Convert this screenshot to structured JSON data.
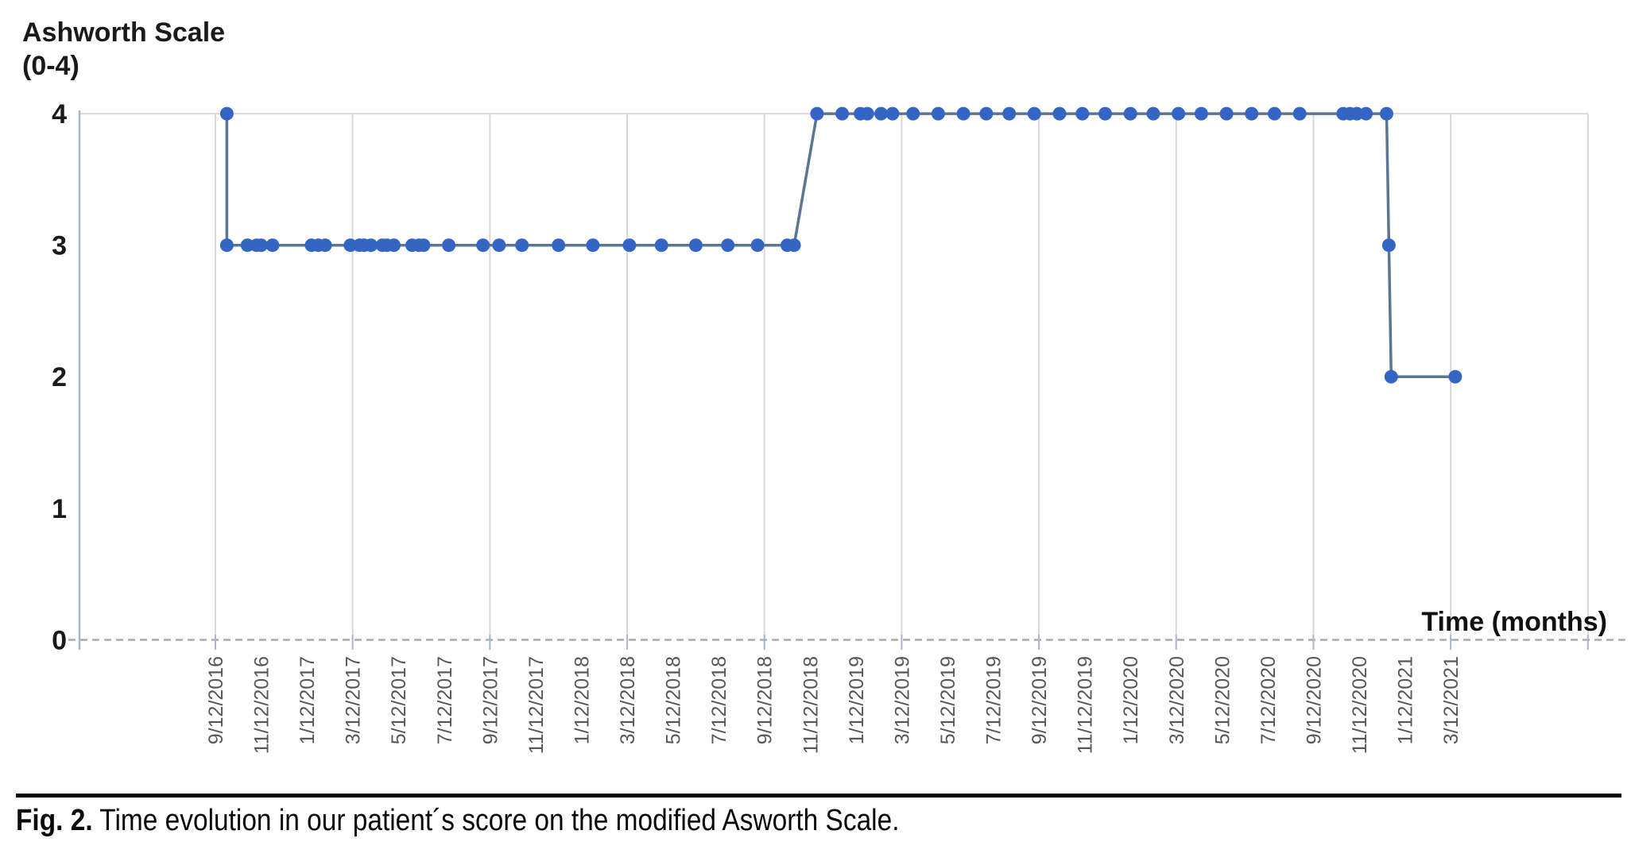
{
  "figure": {
    "y_axis_title_line1": "Ashworth Scale",
    "y_axis_title_line2": "(0-4)",
    "x_axis_title": "Time (months)",
    "caption_prefix": "Fig. 2.",
    "caption_text": " Time evolution in our patient´s score on the modified Asworth Scale."
  },
  "chart_data": {
    "type": "line",
    "title": "Ashworth Scale (0-4)",
    "xlabel": "Time (months)",
    "ylabel": "Ashworth Scale (0-4)",
    "ylim": [
      0,
      4
    ],
    "y_ticks": [
      4,
      3,
      2,
      1,
      0
    ],
    "x_range_months": [
      0,
      60
    ],
    "x_tick_interval_months": 2,
    "x_epoch_label": "9/12/2016",
    "x_tick_labels": [
      "9/12/2016",
      "11/12/2016",
      "1/12/2017",
      "3/12/2017",
      "5/12/2017",
      "7/12/2017",
      "9/12/2017",
      "11/12/2017",
      "1/12/2018",
      "3/12/2018",
      "5/12/2018",
      "7/12/2018",
      "9/12/2018",
      "11/12/2018",
      "1/12/2019",
      "3/12/2019",
      "5/12/2019",
      "7/12/2019",
      "9/12/2019",
      "11/12/2019",
      "1/12/2020",
      "3/12/2020",
      "5/12/2020",
      "7/12/2020",
      "9/12/2020",
      "11/12/2020",
      "1/12/2021",
      "3/12/2021"
    ],
    "gridlines": {
      "vertical_every_months": 6,
      "horizontal_at_values": [
        4
      ],
      "baseline_dashed_at": 0
    },
    "legend": "none",
    "points_note": "t = months after 9/12/2016 (estimated from axis); y = modified Ashworth score",
    "points": [
      {
        "t": 0.5,
        "y": 4
      },
      {
        "t": 0.5,
        "y": 3
      },
      {
        "t": 1.4,
        "y": 3
      },
      {
        "t": 1.8,
        "y": 3
      },
      {
        "t": 2.0,
        "y": 3
      },
      {
        "t": 2.5,
        "y": 3
      },
      {
        "t": 4.2,
        "y": 3
      },
      {
        "t": 4.5,
        "y": 3
      },
      {
        "t": 4.8,
        "y": 3
      },
      {
        "t": 5.9,
        "y": 3
      },
      {
        "t": 6.3,
        "y": 3
      },
      {
        "t": 6.5,
        "y": 3
      },
      {
        "t": 6.8,
        "y": 3
      },
      {
        "t": 7.3,
        "y": 3
      },
      {
        "t": 7.5,
        "y": 3
      },
      {
        "t": 7.8,
        "y": 3
      },
      {
        "t": 8.6,
        "y": 3
      },
      {
        "t": 8.9,
        "y": 3
      },
      {
        "t": 9.1,
        "y": 3
      },
      {
        "t": 10.2,
        "y": 3
      },
      {
        "t": 11.7,
        "y": 3
      },
      {
        "t": 12.4,
        "y": 3
      },
      {
        "t": 13.4,
        "y": 3
      },
      {
        "t": 15.0,
        "y": 3
      },
      {
        "t": 16.5,
        "y": 3
      },
      {
        "t": 18.1,
        "y": 3
      },
      {
        "t": 19.5,
        "y": 3
      },
      {
        "t": 21.0,
        "y": 3
      },
      {
        "t": 22.4,
        "y": 3
      },
      {
        "t": 23.7,
        "y": 3
      },
      {
        "t": 25.0,
        "y": 3
      },
      {
        "t": 25.3,
        "y": 3
      },
      {
        "t": 26.3,
        "y": 4
      },
      {
        "t": 27.4,
        "y": 4
      },
      {
        "t": 28.2,
        "y": 4
      },
      {
        "t": 28.5,
        "y": 4
      },
      {
        "t": 29.1,
        "y": 4
      },
      {
        "t": 29.6,
        "y": 4
      },
      {
        "t": 30.5,
        "y": 4
      },
      {
        "t": 31.6,
        "y": 4
      },
      {
        "t": 32.7,
        "y": 4
      },
      {
        "t": 33.7,
        "y": 4
      },
      {
        "t": 34.7,
        "y": 4
      },
      {
        "t": 35.8,
        "y": 4
      },
      {
        "t": 36.9,
        "y": 4
      },
      {
        "t": 37.9,
        "y": 4
      },
      {
        "t": 38.9,
        "y": 4
      },
      {
        "t": 40.0,
        "y": 4
      },
      {
        "t": 41.0,
        "y": 4
      },
      {
        "t": 42.1,
        "y": 4
      },
      {
        "t": 43.1,
        "y": 4
      },
      {
        "t": 44.2,
        "y": 4
      },
      {
        "t": 45.3,
        "y": 4
      },
      {
        "t": 46.3,
        "y": 4
      },
      {
        "t": 47.4,
        "y": 4
      },
      {
        "t": 49.3,
        "y": 4
      },
      {
        "t": 49.6,
        "y": 4
      },
      {
        "t": 49.9,
        "y": 4
      },
      {
        "t": 50.3,
        "y": 4
      },
      {
        "t": 51.2,
        "y": 4
      },
      {
        "t": 51.3,
        "y": 3
      },
      {
        "t": 51.4,
        "y": 2
      },
      {
        "t": 54.2,
        "y": 2
      }
    ],
    "colors": {
      "marker": "#3565c4",
      "line": "#5b7693",
      "grid": "#d9d9d9",
      "axis": "#aab7c8",
      "dash_baseline": "#ababab",
      "x_label_text": "#575757",
      "y_label_text": "#1a1a1a"
    }
  }
}
